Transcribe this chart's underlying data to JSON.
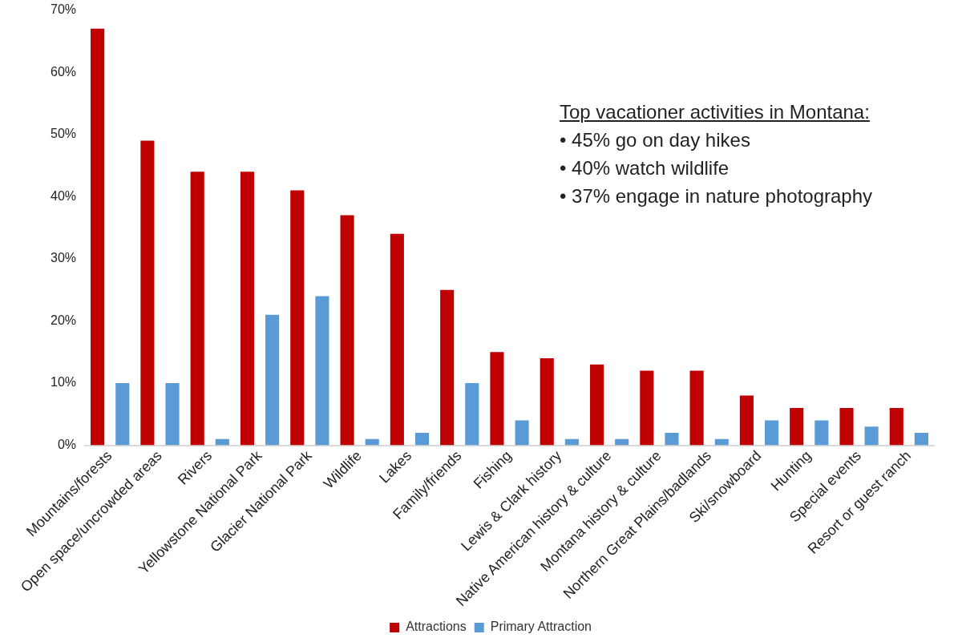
{
  "chart_data": {
    "type": "bar",
    "categories": [
      "Mountains/forests",
      "Open space/uncrowded areas",
      "Rivers",
      "Yellowstone National Park",
      "Glacier National Park",
      "Wildlife",
      "Lakes",
      "Family/friends",
      "Fishing",
      "Lewis & Clark history",
      "Native American history & culture",
      "Montana history & culture",
      "Northern Great Plains/badlands",
      "Ski/snowboard",
      "Hunting",
      "Special events",
      "Resort or guest ranch"
    ],
    "series": [
      {
        "name": "Attractions",
        "color": "#c00000",
        "values": [
          67,
          49,
          44,
          44,
          41,
          37,
          34,
          25,
          15,
          14,
          13,
          12,
          12,
          8,
          6,
          6,
          6
        ]
      },
      {
        "name": "Primary Attraction",
        "color": "#5b9bd5",
        "values": [
          10,
          10,
          1,
          21,
          24,
          1,
          2,
          10,
          4,
          1,
          1,
          2,
          1,
          4,
          4,
          3,
          2
        ]
      }
    ],
    "ylim": [
      0,
      70
    ],
    "yticks": [
      {
        "value": 0,
        "label": "0%"
      },
      {
        "value": 10,
        "label": "10%"
      },
      {
        "value": 20,
        "label": "20%"
      },
      {
        "value": 30,
        "label": "30%"
      },
      {
        "value": 40,
        "label": "40%"
      },
      {
        "value": 50,
        "label": "50%"
      },
      {
        "value": 60,
        "label": "60%"
      },
      {
        "value": 70,
        "label": "70%"
      }
    ],
    "grid": false,
    "legend": "bottom",
    "annotations": [
      "Top vacationer activities in Montana:",
      "•  45% go on day hikes",
      "•  40% watch wildlife",
      "•  37% engage in nature photography"
    ]
  }
}
